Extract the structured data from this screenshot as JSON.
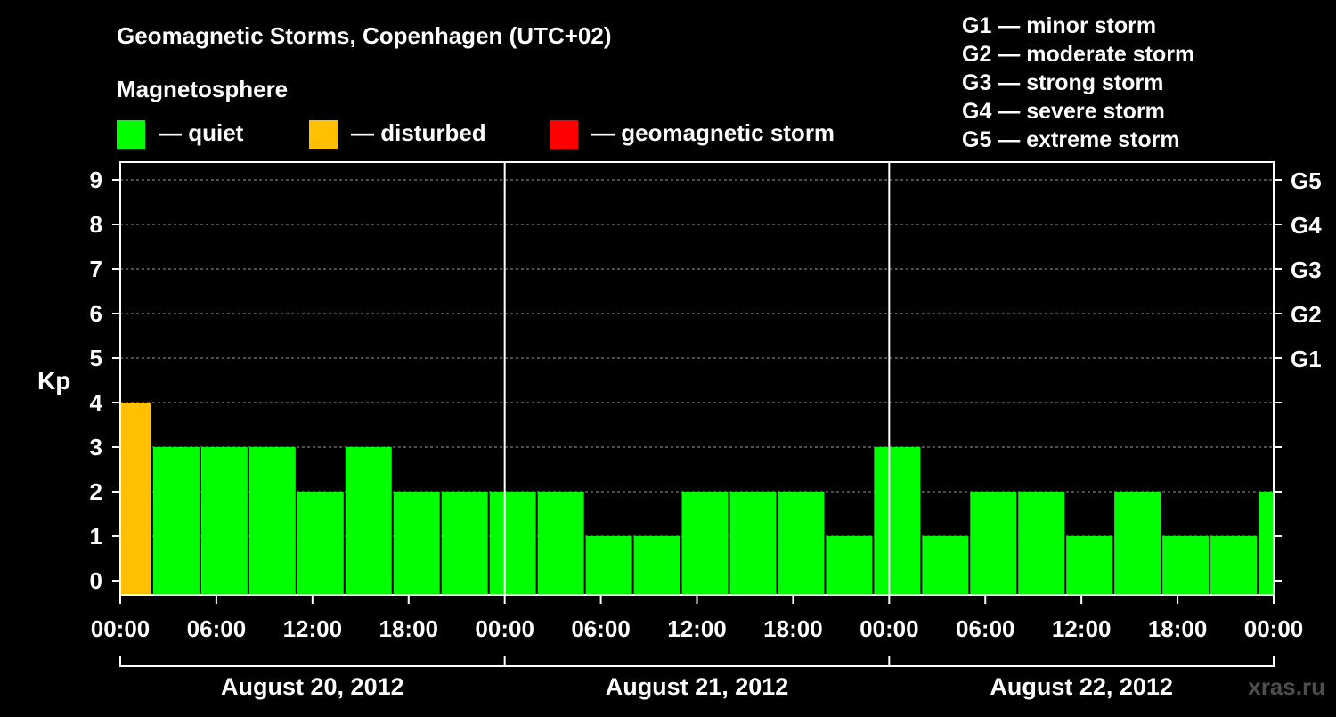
{
  "header": {
    "title": "Geomagnetic Storms, Copenhagen (UTC+02)",
    "legend_heading": "Magnetosphere",
    "legend": [
      {
        "label": "— quiet",
        "color": "#00ff00"
      },
      {
        "label": "— disturbed",
        "color": "#ffc000"
      },
      {
        "label": "— geomagnetic storm",
        "color": "#ff0000"
      }
    ],
    "storm_scale": [
      "G1 — minor storm",
      "G2 — moderate storm",
      "G3 — strong storm",
      "G4 — severe storm",
      "G5 — extreme storm"
    ],
    "watermark": "xras.ru"
  },
  "chart_data": {
    "type": "bar",
    "title": "Geomagnetic Storms, Copenhagen (UTC+02)",
    "ylabel": "Kp",
    "ylim": [
      0,
      9
    ],
    "yticks": [
      "0",
      "1",
      "2",
      "3",
      "4",
      "5",
      "6",
      "7",
      "8",
      "9"
    ],
    "right_ticks": [
      {
        "y": 5,
        "label": "G1"
      },
      {
        "y": 6,
        "label": "G2"
      },
      {
        "y": 7,
        "label": "G3"
      },
      {
        "y": 8,
        "label": "G4"
      },
      {
        "y": 9,
        "label": "G5"
      }
    ],
    "x_range_hours": [
      0,
      72
    ],
    "x_ticks": [
      {
        "hour": 0,
        "label": "00:00"
      },
      {
        "hour": 6,
        "label": "06:00"
      },
      {
        "hour": 12,
        "label": "12:00"
      },
      {
        "hour": 18,
        "label": "18:00"
      },
      {
        "hour": 24,
        "label": "00:00"
      },
      {
        "hour": 30,
        "label": "06:00"
      },
      {
        "hour": 36,
        "label": "12:00"
      },
      {
        "hour": 42,
        "label": "18:00"
      },
      {
        "hour": 48,
        "label": "00:00"
      },
      {
        "hour": 54,
        "label": "06:00"
      },
      {
        "hour": 60,
        "label": "12:00"
      },
      {
        "hour": 66,
        "label": "18:00"
      },
      {
        "hour": 72,
        "label": "00:00"
      }
    ],
    "days": [
      {
        "label": "August 20, 2012",
        "start": 0,
        "end": 24
      },
      {
        "label": "August 21, 2012",
        "start": 24,
        "end": 48
      },
      {
        "label": "August 22, 2012",
        "start": 48,
        "end": 72
      }
    ],
    "grid": "dashed horizontal",
    "colors": {
      "quiet": "#00ff00",
      "disturbed": "#ffc000",
      "storm": "#ff0000"
    },
    "bars": [
      {
        "start": 0,
        "end": 2,
        "kp": 4,
        "level": "disturbed"
      },
      {
        "start": 2,
        "end": 5,
        "kp": 3,
        "level": "quiet"
      },
      {
        "start": 5,
        "end": 8,
        "kp": 3,
        "level": "quiet"
      },
      {
        "start": 8,
        "end": 11,
        "kp": 3,
        "level": "quiet"
      },
      {
        "start": 11,
        "end": 14,
        "kp": 2,
        "level": "quiet"
      },
      {
        "start": 14,
        "end": 17,
        "kp": 3,
        "level": "quiet"
      },
      {
        "start": 17,
        "end": 20,
        "kp": 2,
        "level": "quiet"
      },
      {
        "start": 20,
        "end": 23,
        "kp": 2,
        "level": "quiet"
      },
      {
        "start": 23,
        "end": 26,
        "kp": 2,
        "level": "quiet"
      },
      {
        "start": 26,
        "end": 29,
        "kp": 2,
        "level": "quiet"
      },
      {
        "start": 29,
        "end": 32,
        "kp": 1,
        "level": "quiet"
      },
      {
        "start": 32,
        "end": 35,
        "kp": 1,
        "level": "quiet"
      },
      {
        "start": 35,
        "end": 38,
        "kp": 2,
        "level": "quiet"
      },
      {
        "start": 38,
        "end": 41,
        "kp": 2,
        "level": "quiet"
      },
      {
        "start": 41,
        "end": 44,
        "kp": 2,
        "level": "quiet"
      },
      {
        "start": 44,
        "end": 47,
        "kp": 1,
        "level": "quiet"
      },
      {
        "start": 47,
        "end": 50,
        "kp": 3,
        "level": "quiet"
      },
      {
        "start": 50,
        "end": 53,
        "kp": 1,
        "level": "quiet"
      },
      {
        "start": 53,
        "end": 56,
        "kp": 2,
        "level": "quiet"
      },
      {
        "start": 56,
        "end": 59,
        "kp": 2,
        "level": "quiet"
      },
      {
        "start": 59,
        "end": 62,
        "kp": 1,
        "level": "quiet"
      },
      {
        "start": 62,
        "end": 65,
        "kp": 2,
        "level": "quiet"
      },
      {
        "start": 65,
        "end": 68,
        "kp": 1,
        "level": "quiet"
      },
      {
        "start": 68,
        "end": 71,
        "kp": 1,
        "level": "quiet"
      },
      {
        "start": 71,
        "end": 72,
        "kp": 2,
        "level": "quiet"
      }
    ]
  }
}
